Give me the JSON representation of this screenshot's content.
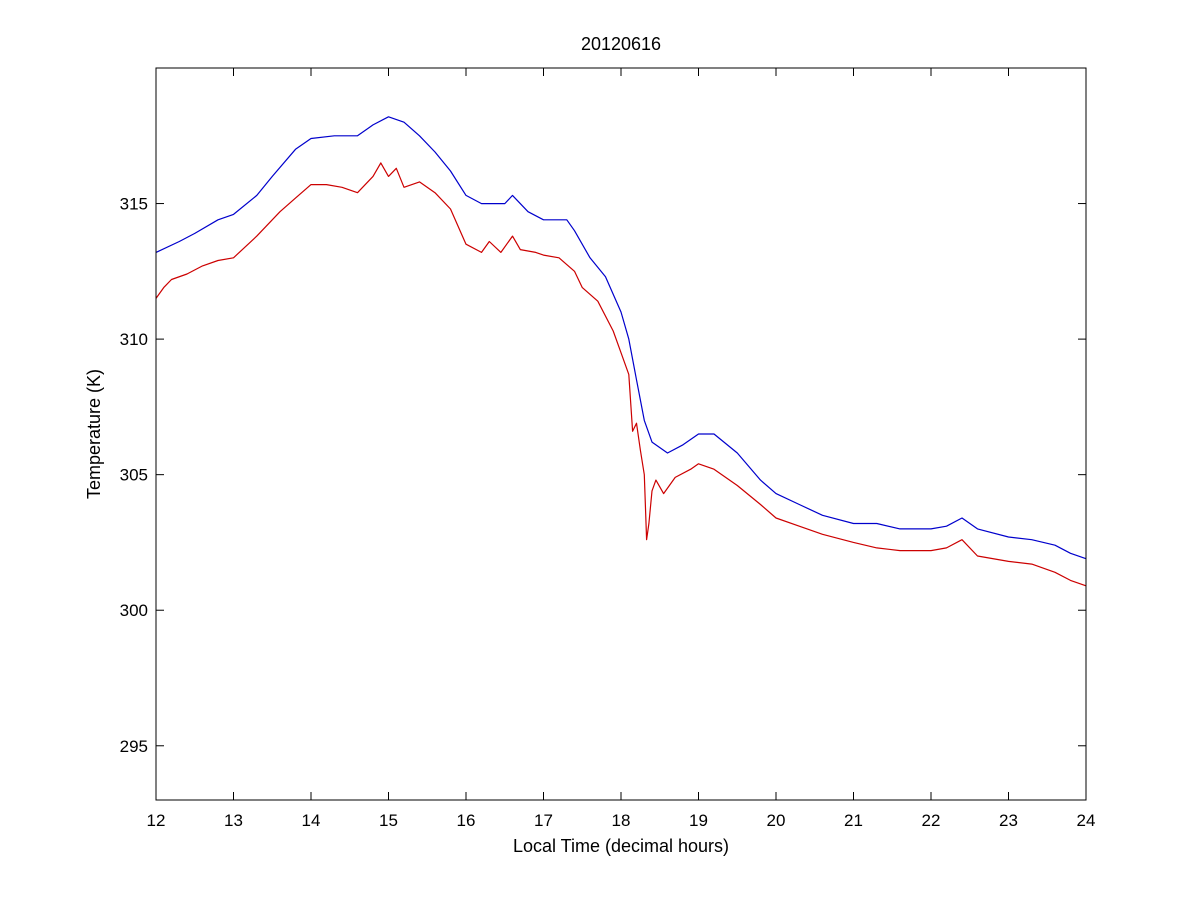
{
  "chart_data": {
    "type": "line",
    "title": "20120616",
    "xlabel": "Local Time (decimal hours)",
    "ylabel": "Temperature (K)",
    "xlim": [
      12,
      24
    ],
    "ylim": [
      293,
      320
    ],
    "xticks": [
      12,
      13,
      14,
      15,
      16,
      17,
      18,
      19,
      20,
      21,
      22,
      23,
      24
    ],
    "xtick_labels": [
      "12",
      "13",
      "14",
      "15",
      "16",
      "17",
      "18",
      "19",
      "20",
      "21",
      "22",
      "23",
      "24"
    ],
    "yticks": [
      295,
      300,
      305,
      310,
      315
    ],
    "ytick_labels": [
      "295",
      "300",
      "305",
      "310",
      "315"
    ],
    "grid": false,
    "legend": "none",
    "series": [
      {
        "color": "#0000cc",
        "points": [
          [
            12.0,
            313.2
          ],
          [
            12.3,
            313.6
          ],
          [
            12.5,
            313.9
          ],
          [
            12.8,
            314.4
          ],
          [
            13.0,
            314.6
          ],
          [
            13.3,
            315.3
          ],
          [
            13.5,
            316.0
          ],
          [
            13.8,
            317.0
          ],
          [
            14.0,
            317.4
          ],
          [
            14.3,
            317.5
          ],
          [
            14.6,
            317.5
          ],
          [
            14.8,
            317.9
          ],
          [
            15.0,
            318.2
          ],
          [
            15.2,
            318.0
          ],
          [
            15.4,
            317.5
          ],
          [
            15.6,
            316.9
          ],
          [
            15.8,
            316.2
          ],
          [
            16.0,
            315.3
          ],
          [
            16.2,
            315.0
          ],
          [
            16.5,
            315.0
          ],
          [
            16.6,
            315.3
          ],
          [
            16.8,
            314.7
          ],
          [
            17.0,
            314.4
          ],
          [
            17.3,
            314.4
          ],
          [
            17.4,
            314.0
          ],
          [
            17.6,
            313.0
          ],
          [
            17.8,
            312.3
          ],
          [
            18.0,
            311.0
          ],
          [
            18.1,
            310.0
          ],
          [
            18.2,
            308.5
          ],
          [
            18.3,
            307.0
          ],
          [
            18.4,
            306.2
          ],
          [
            18.6,
            305.8
          ],
          [
            18.8,
            306.1
          ],
          [
            19.0,
            306.5
          ],
          [
            19.2,
            306.5
          ],
          [
            19.5,
            305.8
          ],
          [
            19.8,
            304.8
          ],
          [
            20.0,
            304.3
          ],
          [
            20.3,
            303.9
          ],
          [
            20.6,
            303.5
          ],
          [
            21.0,
            303.2
          ],
          [
            21.3,
            303.2
          ],
          [
            21.6,
            303.0
          ],
          [
            22.0,
            303.0
          ],
          [
            22.2,
            303.1
          ],
          [
            22.4,
            303.4
          ],
          [
            22.6,
            303.0
          ],
          [
            23.0,
            302.7
          ],
          [
            23.3,
            302.6
          ],
          [
            23.6,
            302.4
          ],
          [
            23.8,
            302.1
          ],
          [
            24.0,
            301.9
          ]
        ]
      },
      {
        "color": "#cc0000",
        "points": [
          [
            12.0,
            311.5
          ],
          [
            12.1,
            311.9
          ],
          [
            12.2,
            312.2
          ],
          [
            12.4,
            312.4
          ],
          [
            12.6,
            312.7
          ],
          [
            12.8,
            312.9
          ],
          [
            13.0,
            313.0
          ],
          [
            13.3,
            313.8
          ],
          [
            13.6,
            314.7
          ],
          [
            13.8,
            315.2
          ],
          [
            14.0,
            315.7
          ],
          [
            14.2,
            315.7
          ],
          [
            14.4,
            315.6
          ],
          [
            14.6,
            315.4
          ],
          [
            14.8,
            316.0
          ],
          [
            14.9,
            316.5
          ],
          [
            15.0,
            316.0
          ],
          [
            15.1,
            316.3
          ],
          [
            15.2,
            315.6
          ],
          [
            15.4,
            315.8
          ],
          [
            15.6,
            315.4
          ],
          [
            15.8,
            314.8
          ],
          [
            16.0,
            313.5
          ],
          [
            16.2,
            313.2
          ],
          [
            16.3,
            313.6
          ],
          [
            16.45,
            313.2
          ],
          [
            16.6,
            313.8
          ],
          [
            16.7,
            313.3
          ],
          [
            16.9,
            313.2
          ],
          [
            17.0,
            313.1
          ],
          [
            17.2,
            313.0
          ],
          [
            17.4,
            312.5
          ],
          [
            17.5,
            311.9
          ],
          [
            17.7,
            311.4
          ],
          [
            17.9,
            310.3
          ],
          [
            18.0,
            309.5
          ],
          [
            18.1,
            308.7
          ],
          [
            18.15,
            306.6
          ],
          [
            18.2,
            306.9
          ],
          [
            18.25,
            305.9
          ],
          [
            18.3,
            305.0
          ],
          [
            18.33,
            302.6
          ],
          [
            18.36,
            303.2
          ],
          [
            18.4,
            304.4
          ],
          [
            18.45,
            304.8
          ],
          [
            18.55,
            304.3
          ],
          [
            18.7,
            304.9
          ],
          [
            18.9,
            305.2
          ],
          [
            19.0,
            305.4
          ],
          [
            19.2,
            305.2
          ],
          [
            19.5,
            304.6
          ],
          [
            19.8,
            303.9
          ],
          [
            20.0,
            303.4
          ],
          [
            20.3,
            303.1
          ],
          [
            20.6,
            302.8
          ],
          [
            21.0,
            302.5
          ],
          [
            21.3,
            302.3
          ],
          [
            21.6,
            302.2
          ],
          [
            22.0,
            302.2
          ],
          [
            22.2,
            302.3
          ],
          [
            22.4,
            302.6
          ],
          [
            22.6,
            302.0
          ],
          [
            23.0,
            301.8
          ],
          [
            23.3,
            301.7
          ],
          [
            23.6,
            301.4
          ],
          [
            23.8,
            301.1
          ],
          [
            24.0,
            300.9
          ]
        ]
      }
    ]
  }
}
